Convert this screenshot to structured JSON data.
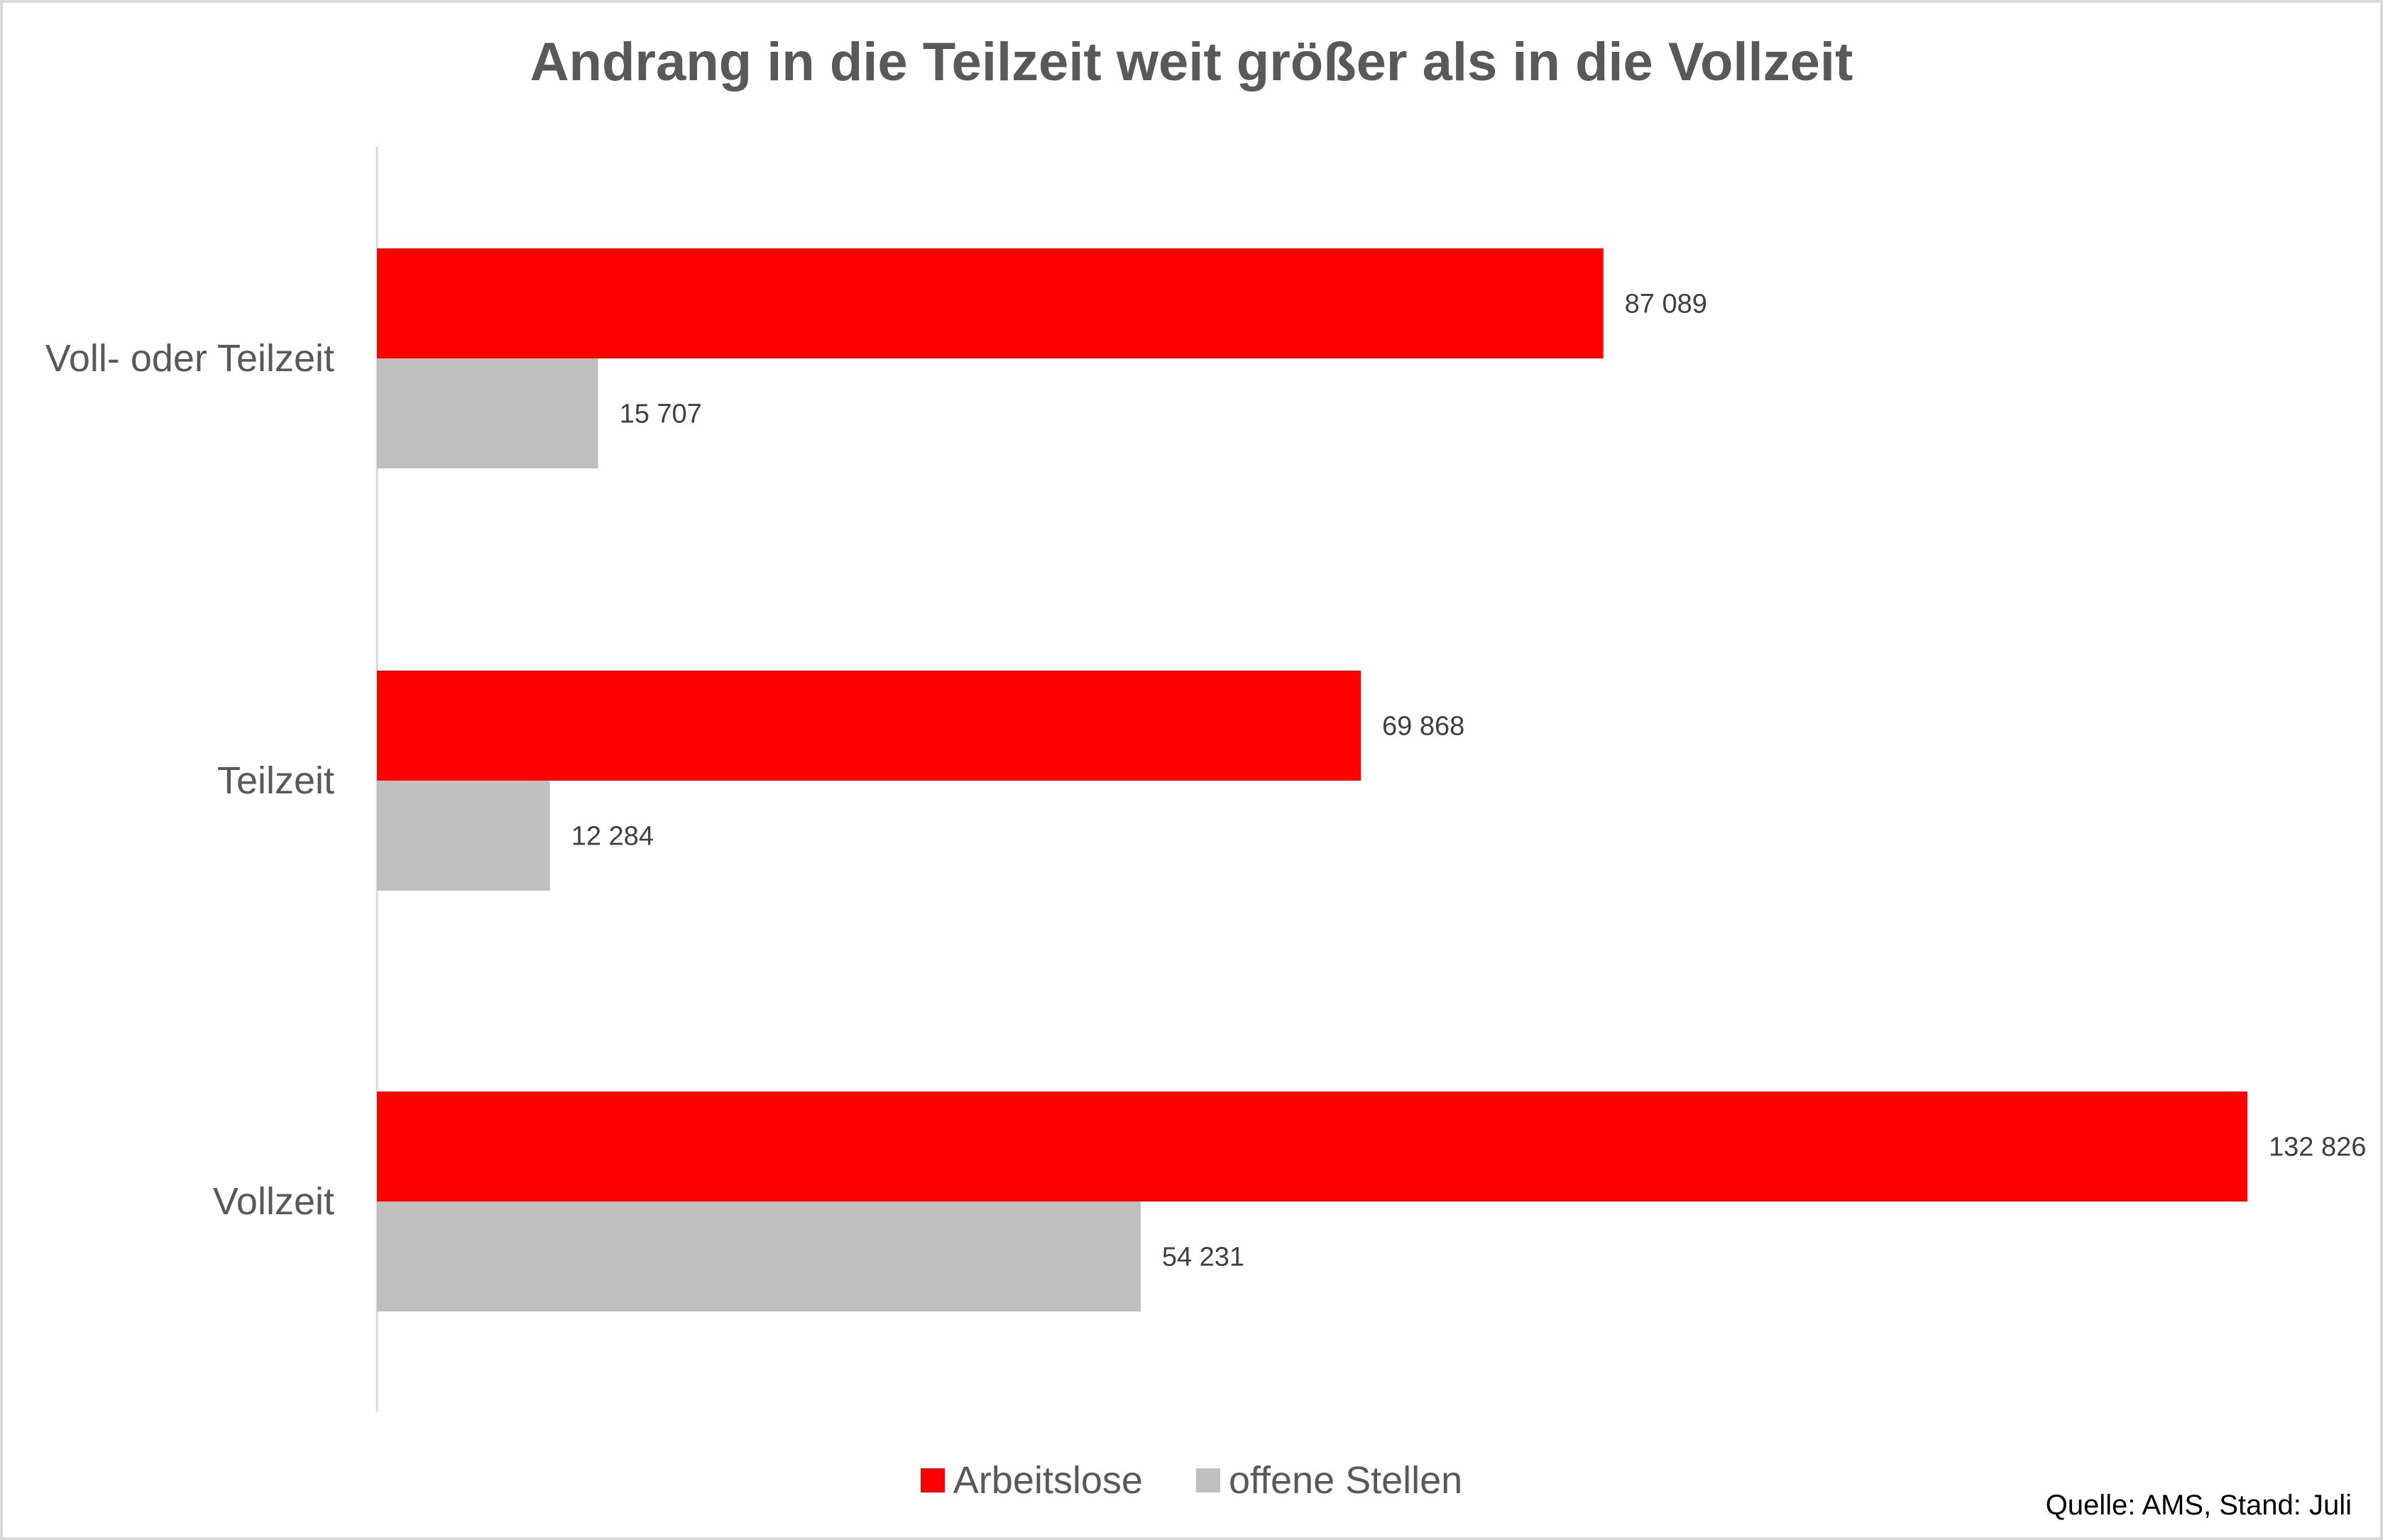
{
  "chart_data": {
    "type": "bar",
    "orientation": "horizontal",
    "title": "Andrang in die Teilzeit weit größer als in die Vollzeit",
    "categories": [
      "Voll- oder Teilzeit",
      "Teilzeit",
      "Vollzeit"
    ],
    "series": [
      {
        "name": "Arbeitslose",
        "color": "#ff0000",
        "values": [
          87089,
          69868,
          132826
        ],
        "labels": [
          "87 089",
          "69 868",
          "132 826"
        ]
      },
      {
        "name": "offene Stellen",
        "color": "#bfbfbf",
        "values": [
          15707,
          12284,
          54231
        ],
        "labels": [
          "15 707",
          "12 284",
          "54 231"
        ]
      }
    ],
    "xlim": [
      0,
      132826
    ],
    "grid": false,
    "value_axis_visible": false,
    "legend_position": "bottom",
    "source": "Quelle: AMS, Stand: Juli"
  }
}
